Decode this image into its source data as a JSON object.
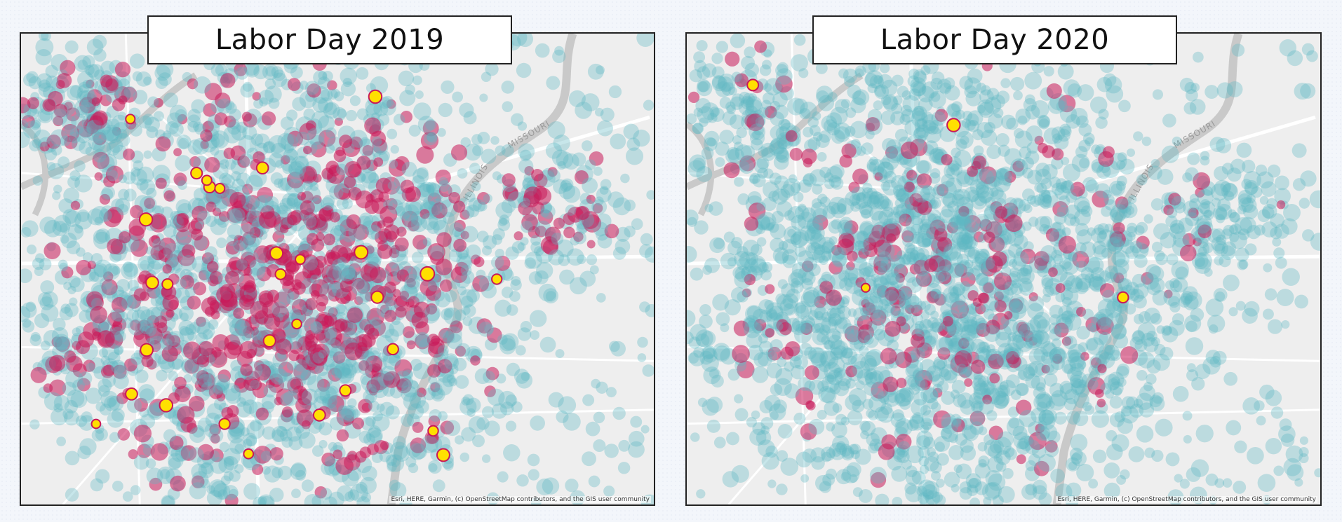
{
  "maps": [
    {
      "id": "labor-day-2019",
      "title": "Labor Day 2019",
      "attribution": "Esri, HERE, Garmin, (c) OpenStreetMap contributors, and the GIS user community",
      "river_labels": [
        "MISSOURI",
        "ILLINOIS"
      ],
      "density_level": "high",
      "hotspot_count": 30
    },
    {
      "id": "labor-day-2020",
      "title": "Labor Day 2020",
      "attribution": "Esri, HERE, Garmin, (c) OpenStreetMap contributors, and the GIS user community",
      "river_labels": [
        "MISSOURI",
        "ILLINOIS"
      ],
      "density_level": "medium",
      "hotspot_count": 4
    }
  ],
  "colors": {
    "basemap": "#eeeeee",
    "river": "#c9c9c9",
    "road": "#ffffff",
    "heat_low": "#5fb6c4",
    "heat_mid": "#c8195a",
    "heat_high": "#ffe000",
    "hotspot_outline": "#c8195a"
  }
}
